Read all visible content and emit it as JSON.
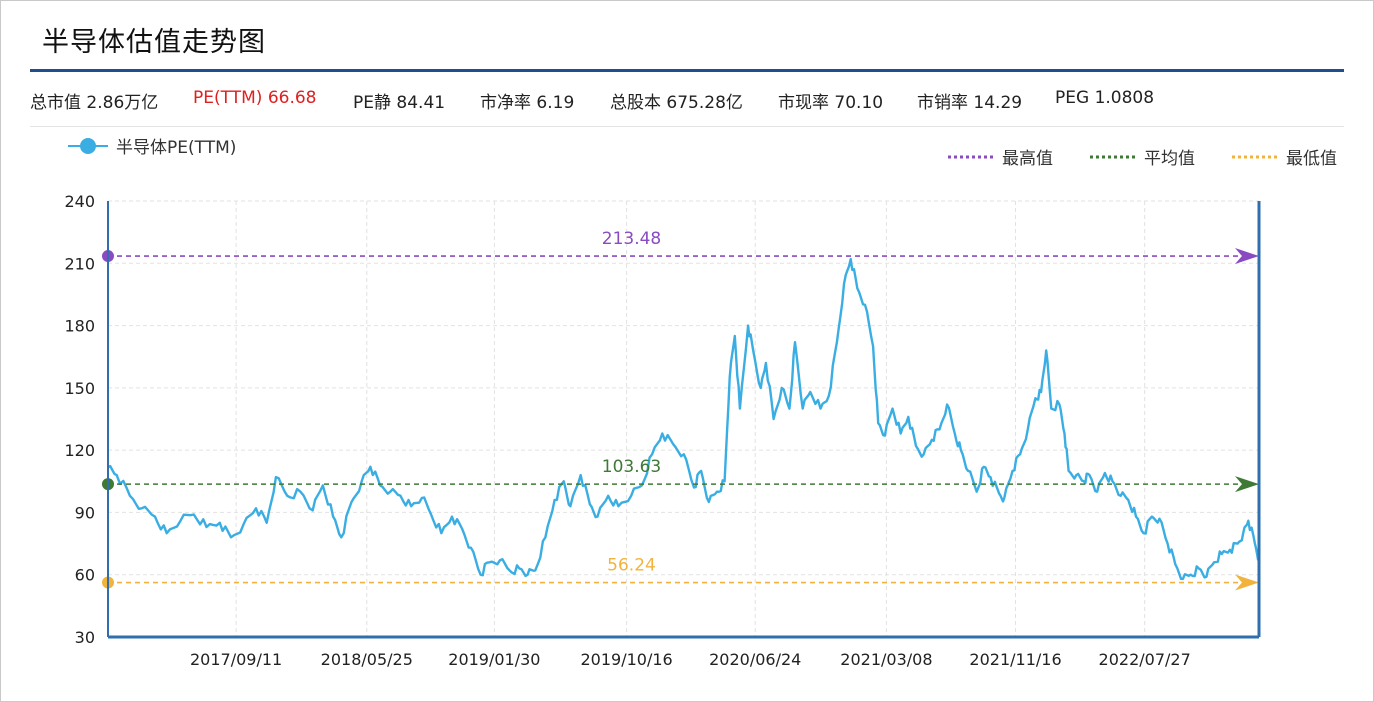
{
  "title": "半导体估值走势图",
  "stats": [
    {
      "label": "总市值",
      "value": "2.86万亿",
      "highlight": false
    },
    {
      "label": "PE(TTM)",
      "value": "66.68",
      "highlight": true
    },
    {
      "label": "PE静",
      "value": "84.41",
      "highlight": false
    },
    {
      "label": "市净率",
      "value": "6.19",
      "highlight": false
    },
    {
      "label": "总股本",
      "value": "675.28亿",
      "highlight": false
    },
    {
      "label": "市现率",
      "value": "70.10",
      "highlight": false
    },
    {
      "label": "市销率",
      "value": "14.29",
      "highlight": false
    },
    {
      "label": "PEG",
      "value": "1.0808",
      "highlight": false
    }
  ],
  "colors": {
    "series": "#3aaee3",
    "max": "#8a4bc2",
    "avg": "#3e7a35",
    "min": "#f2b33d",
    "axis": "#2f6fad",
    "grid": "#e2e2e2"
  },
  "chart_data": {
    "type": "line",
    "title": "半导体估值走势图",
    "xlabel": "",
    "ylabel": "",
    "ylim": [
      30,
      240
    ],
    "yticks": [
      30,
      60,
      90,
      120,
      150,
      180,
      210,
      240
    ],
    "xticks": [
      "2017/09/11",
      "2018/05/25",
      "2019/01/30",
      "2019/10/16",
      "2020/06/24",
      "2021/03/08",
      "2021/11/16",
      "2022/07/27"
    ],
    "xrange": [
      "2017/01/03",
      "2023/03/08"
    ],
    "legend_position": "top-left",
    "grid": true,
    "series": [
      {
        "name": "半导体PE(TTM)",
        "points": [
          [
            "2017/01/03",
            112
          ],
          [
            "2017/01/20",
            108
          ],
          [
            "2017/02/15",
            98
          ],
          [
            "2017/03/10",
            92
          ],
          [
            "2017/04/05",
            88
          ],
          [
            "2017/04/28",
            80
          ],
          [
            "2017/05/25",
            86
          ],
          [
            "2017/06/20",
            89
          ],
          [
            "2017/07/15",
            83
          ],
          [
            "2017/08/10",
            85
          ],
          [
            "2017/09/01",
            78
          ],
          [
            "2017/09/25",
            84
          ],
          [
            "2017/10/20",
            92
          ],
          [
            "2017/11/10",
            85
          ],
          [
            "2017/11/28",
            107
          ],
          [
            "2017/12/20",
            98
          ],
          [
            "2018/01/15",
            100
          ],
          [
            "2018/02/08",
            91
          ],
          [
            "2018/02/28",
            103
          ],
          [
            "2018/03/20",
            88
          ],
          [
            "2018/04/05",
            78
          ],
          [
            "2018/04/25",
            95
          ],
          [
            "2018/05/15",
            105
          ],
          [
            "2018/06/01",
            112
          ],
          [
            "2018/06/20",
            103
          ],
          [
            "2018/07/10",
            100
          ],
          [
            "2018/07/30",
            98
          ],
          [
            "2018/08/20",
            93
          ],
          [
            "2018/09/10",
            97
          ],
          [
            "2018/09/28",
            89
          ],
          [
            "2018/10/18",
            80
          ],
          [
            "2018/11/08",
            88
          ],
          [
            "2018/11/28",
            82
          ],
          [
            "2018/12/15",
            73
          ],
          [
            "2019/01/03",
            60
          ],
          [
            "2019/01/20",
            66
          ],
          [
            "2019/02/10",
            67
          ],
          [
            "2019/03/01",
            62
          ],
          [
            "2019/03/20",
            63
          ],
          [
            "2019/04/05",
            60
          ],
          [
            "2019/04/20",
            62
          ],
          [
            "2019/05/10",
            78
          ],
          [
            "2019/05/28",
            96
          ],
          [
            "2019/06/15",
            105
          ],
          [
            "2019/06/28",
            93
          ],
          [
            "2019/07/18",
            108
          ],
          [
            "2019/08/05",
            94
          ],
          [
            "2019/08/20",
            88
          ],
          [
            "2019/09/10",
            98
          ],
          [
            "2019/09/30",
            93
          ],
          [
            "2019/10/25",
            98
          ],
          [
            "2019/11/15",
            103
          ],
          [
            "2019/12/05",
            118
          ],
          [
            "2019/12/25",
            128
          ],
          [
            "2020/01/15",
            123
          ],
          [
            "2020/02/05",
            118
          ],
          [
            "2020/02/25",
            102
          ],
          [
            "2020/03/10",
            110
          ],
          [
            "2020/03/25",
            95
          ],
          [
            "2020/04/10",
            100
          ],
          [
            "2020/04/25",
            105
          ],
          [
            "2020/05/05",
            155
          ],
          [
            "2020/05/15",
            175
          ],
          [
            "2020/05/25",
            140
          ],
          [
            "2020/06/10",
            180
          ],
          [
            "2020/06/20",
            168
          ],
          [
            "2020/07/05",
            150
          ],
          [
            "2020/07/15",
            162
          ],
          [
            "2020/07/30",
            135
          ],
          [
            "2020/08/15",
            150
          ],
          [
            "2020/08/30",
            140
          ],
          [
            "2020/09/10",
            172
          ],
          [
            "2020/09/25",
            140
          ],
          [
            "2020/10/10",
            148
          ],
          [
            "2020/10/30",
            140
          ],
          [
            "2020/11/15",
            146
          ],
          [
            "2020/12/01",
            172
          ],
          [
            "2020/12/15",
            200
          ],
          [
            "2020/12/28",
            212
          ],
          [
            "2021/01/10",
            198
          ],
          [
            "2021/01/25",
            190
          ],
          [
            "2021/02/10",
            170
          ],
          [
            "2021/02/20",
            133
          ],
          [
            "2021/03/05",
            127
          ],
          [
            "2021/03/20",
            140
          ],
          [
            "2021/04/05",
            128
          ],
          [
            "2021/04/20",
            136
          ],
          [
            "2021/05/05",
            122
          ],
          [
            "2021/05/20",
            118
          ],
          [
            "2021/06/05",
            125
          ],
          [
            "2021/06/20",
            130
          ],
          [
            "2021/07/05",
            142
          ],
          [
            "2021/07/20",
            128
          ],
          [
            "2021/08/01",
            120
          ],
          [
            "2021/08/15",
            110
          ],
          [
            "2021/09/01",
            100
          ],
          [
            "2021/09/15",
            112
          ],
          [
            "2021/09/28",
            107
          ],
          [
            "2021/10/15",
            99
          ],
          [
            "2021/10/25",
            97
          ],
          [
            "2021/11/10",
            110
          ],
          [
            "2021/11/25",
            118
          ],
          [
            "2021/12/10",
            130
          ],
          [
            "2021/12/25",
            145
          ],
          [
            "2022/01/05",
            148
          ],
          [
            "2022/01/15",
            168
          ],
          [
            "2022/01/25",
            140
          ],
          [
            "2022/02/10",
            142
          ],
          [
            "2022/02/20",
            128
          ],
          [
            "2022/02/28",
            110
          ],
          [
            "2022/03/15",
            108
          ],
          [
            "2022/03/30",
            105
          ],
          [
            "2022/04/10",
            108
          ],
          [
            "2022/04/25",
            100
          ],
          [
            "2022/05/10",
            109
          ],
          [
            "2022/05/25",
            105
          ],
          [
            "2022/06/10",
            98
          ],
          [
            "2022/06/25",
            96
          ],
          [
            "2022/07/10",
            88
          ],
          [
            "2022/07/25",
            80
          ],
          [
            "2022/08/10",
            88
          ],
          [
            "2022/08/25",
            87
          ],
          [
            "2022/09/10",
            75
          ],
          [
            "2022/09/25",
            65
          ],
          [
            "2022/10/10",
            58
          ],
          [
            "2022/10/25",
            60
          ],
          [
            "2022/11/10",
            63
          ],
          [
            "2022/11/25",
            59
          ],
          [
            "2022/12/10",
            66
          ],
          [
            "2022/12/25",
            70
          ],
          [
            "2023/01/10",
            72
          ],
          [
            "2023/01/25",
            75
          ],
          [
            "2023/02/05",
            80
          ],
          [
            "2023/02/15",
            86
          ],
          [
            "2023/02/28",
            75
          ],
          [
            "2023/03/08",
            67
          ]
        ]
      }
    ],
    "reference_lines": [
      {
        "name": "最高值",
        "value": 213.48,
        "label": "213.48",
        "color_key": "max"
      },
      {
        "name": "平均值",
        "value": 103.63,
        "label": "103.63",
        "color_key": "avg"
      },
      {
        "name": "最低值",
        "value": 56.24,
        "label": "56.24",
        "color_key": "min"
      }
    ]
  }
}
